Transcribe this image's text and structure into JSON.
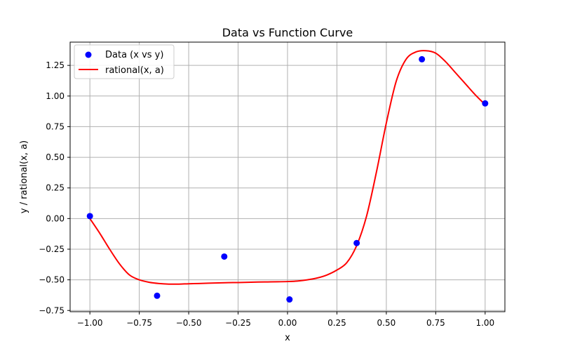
{
  "chart_data": {
    "type": "scatter",
    "title": "Data vs Function Curve",
    "xlabel": "x",
    "ylabel": "y / rational(x, a)",
    "xlim": [
      -1.1,
      1.1
    ],
    "ylim": [
      -0.76,
      1.44
    ],
    "xticks": [
      -1.0,
      -0.75,
      -0.5,
      -0.25,
      0.0,
      0.25,
      0.5,
      0.75,
      1.0
    ],
    "xtick_labels": [
      "−1.00",
      "−0.75",
      "−0.50",
      "−0.25",
      "0.00",
      "0.25",
      "0.50",
      "0.75",
      "1.00"
    ],
    "yticks": [
      -0.75,
      -0.5,
      -0.25,
      0.0,
      0.25,
      0.5,
      0.75,
      1.0,
      1.25
    ],
    "ytick_labels": [
      "−0.75",
      "−0.50",
      "−0.25",
      "0.00",
      "0.25",
      "0.50",
      "0.75",
      "1.00",
      "1.25"
    ],
    "grid": true,
    "legend_position": "top-left",
    "series": [
      {
        "name": "Data (x vs y)",
        "kind": "scatter",
        "color": "#0000ff",
        "x": [
          -1.0,
          -0.66,
          -0.32,
          0.01,
          0.35,
          0.68,
          1.0
        ],
        "y": [
          0.02,
          -0.63,
          -0.31,
          -0.66,
          -0.2,
          1.3,
          0.94
        ]
      },
      {
        "name": "rational(x, a)",
        "kind": "line",
        "color": "#ff0000",
        "x": [
          -1.0,
          -0.95,
          -0.9,
          -0.85,
          -0.8,
          -0.75,
          -0.7,
          -0.65,
          -0.6,
          -0.55,
          -0.5,
          -0.45,
          -0.4,
          -0.35,
          -0.3,
          -0.25,
          -0.2,
          -0.15,
          -0.1,
          -0.05,
          0.0,
          0.05,
          0.1,
          0.15,
          0.2,
          0.25,
          0.3,
          0.35,
          0.4,
          0.45,
          0.5,
          0.55,
          0.6,
          0.65,
          0.7,
          0.75,
          0.8,
          0.85,
          0.9,
          0.95,
          1.0
        ],
        "y": [
          0.0,
          -0.12,
          -0.25,
          -0.37,
          -0.46,
          -0.5,
          -0.52,
          -0.53,
          -0.535,
          -0.535,
          -0.532,
          -0.53,
          -0.527,
          -0.525,
          -0.523,
          -0.522,
          -0.52,
          -0.518,
          -0.517,
          -0.516,
          -0.514,
          -0.51,
          -0.5,
          -0.485,
          -0.46,
          -0.42,
          -0.36,
          -0.22,
          0.02,
          0.38,
          0.78,
          1.12,
          1.3,
          1.36,
          1.37,
          1.35,
          1.28,
          1.19,
          1.1,
          1.01,
          0.93
        ]
      }
    ]
  }
}
